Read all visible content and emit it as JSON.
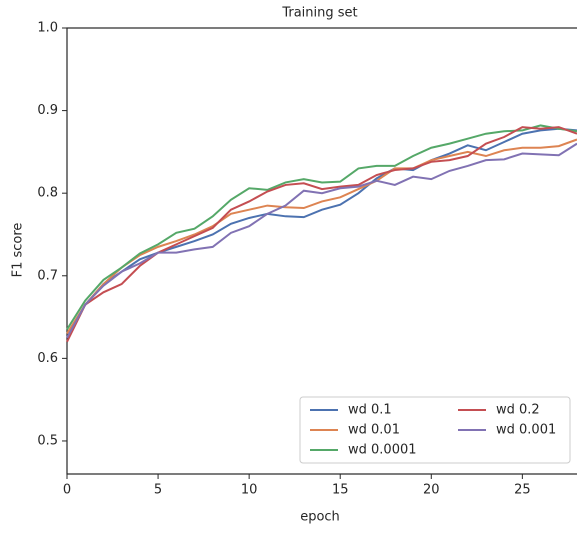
{
  "chart_data": {
    "type": "line",
    "title": "Training set",
    "xlabel": "epoch",
    "ylabel": "F1 score",
    "x": [
      0,
      1,
      2,
      3,
      4,
      5,
      6,
      7,
      8,
      9,
      10,
      11,
      12,
      13,
      14,
      15,
      16,
      17,
      18,
      19,
      20,
      21,
      22,
      23,
      24,
      25,
      26,
      27,
      28
    ],
    "series": [
      {
        "name": "wd 0.1",
        "color": "#4c72b0",
        "values": [
          0.625,
          0.665,
          0.69,
          0.705,
          0.72,
          0.728,
          0.735,
          0.742,
          0.75,
          0.763,
          0.77,
          0.775,
          0.772,
          0.771,
          0.78,
          0.786,
          0.8,
          0.818,
          0.83,
          0.828,
          0.84,
          0.848,
          0.858,
          0.852,
          0.862,
          0.872,
          0.876,
          0.878,
          0.876
        ]
      },
      {
        "name": "wd 0.01",
        "color": "#dd8452",
        "values": [
          0.63,
          0.665,
          0.69,
          0.71,
          0.725,
          0.735,
          0.742,
          0.75,
          0.76,
          0.775,
          0.78,
          0.785,
          0.783,
          0.782,
          0.79,
          0.795,
          0.805,
          0.815,
          0.83,
          0.83,
          0.84,
          0.845,
          0.85,
          0.845,
          0.852,
          0.855,
          0.855,
          0.857,
          0.865
        ]
      },
      {
        "name": "wd 0.0001",
        "color": "#55a868",
        "values": [
          0.635,
          0.67,
          0.695,
          0.71,
          0.727,
          0.738,
          0.752,
          0.757,
          0.772,
          0.792,
          0.806,
          0.804,
          0.813,
          0.817,
          0.813,
          0.814,
          0.83,
          0.833,
          0.833,
          0.845,
          0.855,
          0.86,
          0.866,
          0.872,
          0.875,
          0.876,
          0.882,
          0.878,
          0.875
        ]
      },
      {
        "name": "wd 0.2",
        "color": "#c44e52",
        "values": [
          0.62,
          0.665,
          0.68,
          0.69,
          0.712,
          0.728,
          0.738,
          0.748,
          0.758,
          0.78,
          0.79,
          0.802,
          0.81,
          0.812,
          0.805,
          0.808,
          0.81,
          0.822,
          0.828,
          0.83,
          0.838,
          0.84,
          0.845,
          0.86,
          0.868,
          0.88,
          0.878,
          0.88,
          0.872
        ]
      },
      {
        "name": "wd 0.001",
        "color": "#8172b3",
        "values": [
          0.625,
          0.665,
          0.688,
          0.705,
          0.715,
          0.728,
          0.728,
          0.732,
          0.735,
          0.752,
          0.76,
          0.775,
          0.785,
          0.803,
          0.8,
          0.806,
          0.808,
          0.815,
          0.81,
          0.82,
          0.817,
          0.827,
          0.833,
          0.84,
          0.841,
          0.848,
          0.847,
          0.846,
          0.86
        ]
      }
    ],
    "xlim": [
      0,
      28
    ],
    "ylim": [
      0.46,
      1.0
    ],
    "xticks": [
      0,
      5,
      10,
      15,
      20,
      25
    ],
    "yticks": [
      {
        "value": 0.5,
        "label": "0.5"
      },
      {
        "value": 0.6,
        "label": "0.6"
      },
      {
        "value": 0.7,
        "label": "0.7"
      },
      {
        "value": 0.8,
        "label": "0.8"
      },
      {
        "value": 0.9,
        "label": "0.9"
      },
      {
        "value": 1.0,
        "label": "1.0"
      }
    ],
    "legend": "lower right",
    "grid": false
  }
}
